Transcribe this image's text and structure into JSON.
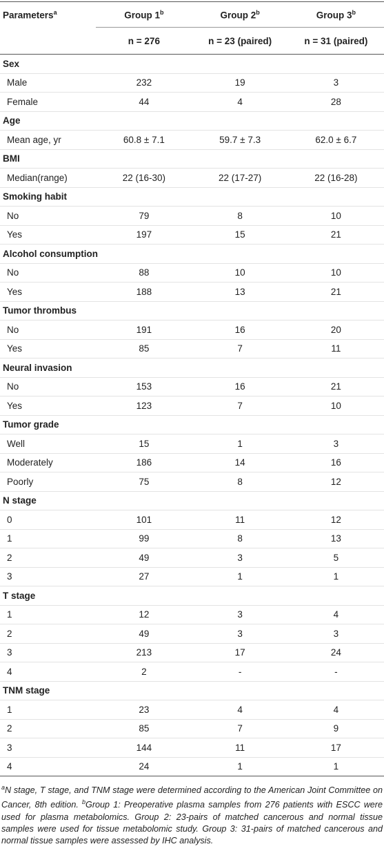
{
  "table": {
    "header": [
      {
        "text": "Parameters",
        "sup": "a"
      },
      {
        "text": "Group 1",
        "sup": "b"
      },
      {
        "text": "Group 2",
        "sup": "b"
      },
      {
        "text": "Group 3",
        "sup": "b"
      }
    ],
    "subheader": [
      "n = 276",
      "n = 23 (paired)",
      "n = 31 (paired)"
    ],
    "sections": [
      {
        "title": "Sex",
        "rows": [
          [
            "Male",
            "232",
            "19",
            "3"
          ],
          [
            "Female",
            "44",
            "4",
            "28"
          ]
        ]
      },
      {
        "title": "Age",
        "rows": [
          [
            "Mean age, yr",
            "60.8 ± 7.1",
            "59.7 ± 7.3",
            "62.0 ± 6.7"
          ]
        ]
      },
      {
        "title": "BMI",
        "rows": [
          [
            "Median(range)",
            "22 (16-30)",
            "22 (17-27)",
            "22 (16-28)"
          ]
        ]
      },
      {
        "title": "Smoking habit",
        "rows": [
          [
            "No",
            "79",
            "8",
            "10"
          ],
          [
            "Yes",
            "197",
            "15",
            "21"
          ]
        ]
      },
      {
        "title": "Alcohol consumption",
        "rows": [
          [
            "No",
            "88",
            "10",
            "10"
          ],
          [
            "Yes",
            "188",
            "13",
            "21"
          ]
        ]
      },
      {
        "title": "Tumor thrombus",
        "rows": [
          [
            "No",
            "191",
            "16",
            "20"
          ],
          [
            "Yes",
            "85",
            "7",
            "11"
          ]
        ]
      },
      {
        "title": "Neural invasion",
        "rows": [
          [
            "No",
            "153",
            "16",
            "21"
          ],
          [
            "Yes",
            "123",
            "7",
            "10"
          ]
        ]
      },
      {
        "title": "Tumor grade",
        "rows": [
          [
            "Well",
            "15",
            "1",
            "3"
          ],
          [
            "Moderately",
            "186",
            "14",
            "16"
          ],
          [
            "Poorly",
            "75",
            "8",
            "12"
          ]
        ]
      },
      {
        "title": "N stage",
        "rows": [
          [
            "0",
            "101",
            "11",
            "12"
          ],
          [
            "1",
            "99",
            "8",
            "13"
          ],
          [
            "2",
            "49",
            "3",
            "5"
          ],
          [
            "3",
            "27",
            "1",
            "1"
          ]
        ]
      },
      {
        "title": "T stage",
        "rows": [
          [
            "1",
            "12",
            "3",
            "4"
          ],
          [
            "2",
            "49",
            "3",
            "3"
          ],
          [
            "3",
            "213",
            "17",
            "24"
          ],
          [
            "4",
            "2",
            "-",
            "-"
          ]
        ]
      },
      {
        "title": "TNM stage",
        "rows": [
          [
            "1",
            "23",
            "4",
            "4"
          ],
          [
            "2",
            "85",
            "7",
            "9"
          ],
          [
            "3",
            "144",
            "11",
            "17"
          ],
          [
            "4",
            "24",
            "1",
            "1"
          ]
        ]
      }
    ]
  },
  "notes": [
    {
      "mark": "a",
      "text": "N stage, T stage, and TNM stage were determined according to the American Joint Committee on Cancer, 8th edition."
    },
    {
      "mark": "b",
      "text": "Group 1: Preoperative plasma samples from 276 patients with ESCC were used for plasma metabolomics. Group 2: 23-pairs of matched cancerous and normal tissue samples were used for tissue metabolomic study. Group 3: 31-pairs of matched cancerous and normal tissue samples were assessed by IHC analysis."
    }
  ]
}
